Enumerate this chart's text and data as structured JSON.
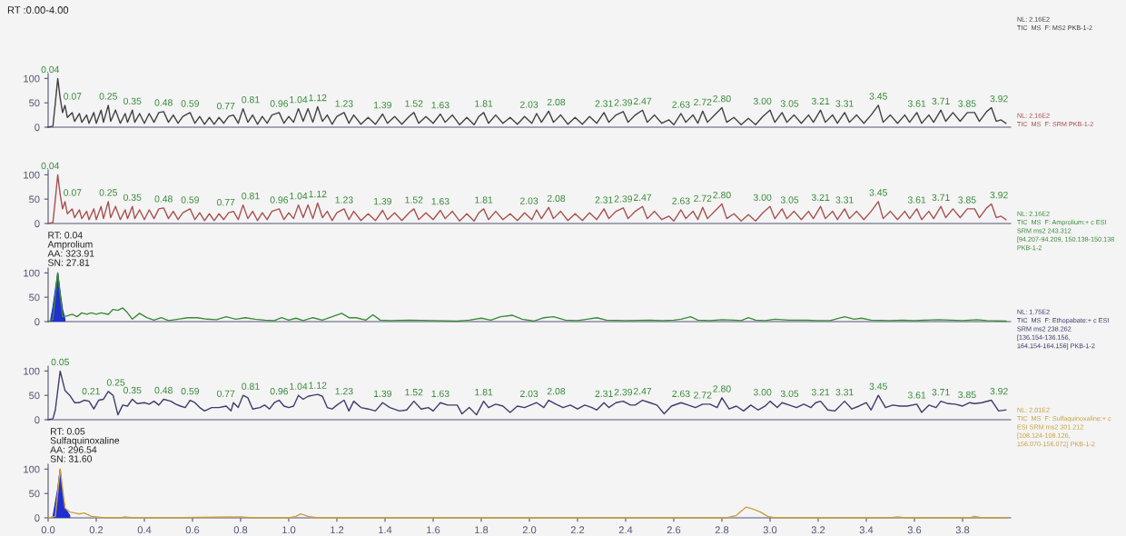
{
  "chart_data": [
    {
      "type": "line",
      "title": "RT :0.00-4.00",
      "xlim": [
        0,
        4.0
      ],
      "ylim": [
        0,
        110
      ],
      "yticks": [
        0,
        50,
        100
      ],
      "tick_labels": "y",
      "series": [
        {
          "color": "#404040",
          "x": [
            0,
            0.02,
            0.03,
            0.04,
            0.05,
            0.06,
            0.07,
            0.08,
            0.1,
            0.11,
            0.13,
            0.14,
            0.16,
            0.17,
            0.19,
            0.2,
            0.22,
            0.23,
            0.25,
            0.26,
            0.28,
            0.3,
            0.32,
            0.33,
            0.35,
            0.36,
            0.38,
            0.4,
            0.42,
            0.44,
            0.46,
            0.48,
            0.5,
            0.52,
            0.54,
            0.56,
            0.59,
            0.61,
            0.63,
            0.65,
            0.67,
            0.69,
            0.71,
            0.73,
            0.75,
            0.77,
            0.79,
            0.81,
            0.83,
            0.85,
            0.87,
            0.89,
            0.91,
            0.93,
            0.96,
            0.98,
            1.0,
            1.02,
            1.04,
            1.06,
            1.08,
            1.1,
            1.12,
            1.14,
            1.16,
            1.18,
            1.2,
            1.23,
            1.25,
            1.27,
            1.3,
            1.33,
            1.36,
            1.39,
            1.41,
            1.44,
            1.47,
            1.5,
            1.52,
            1.54,
            1.57,
            1.6,
            1.63,
            1.65,
            1.68,
            1.71,
            1.74,
            1.77,
            1.79,
            1.81,
            1.83,
            1.86,
            1.89,
            1.92,
            1.95,
            1.98,
            2.01,
            2.03,
            2.05,
            2.08,
            2.1,
            2.13,
            2.16,
            2.19,
            2.22,
            2.25,
            2.28,
            2.31,
            2.33,
            2.36,
            2.39,
            2.41,
            2.44,
            2.47,
            2.49,
            2.52,
            2.55,
            2.58,
            2.6,
            2.63,
            2.65,
            2.68,
            2.7,
            2.72,
            2.74,
            2.77,
            2.8,
            2.82,
            2.85,
            2.88,
            2.91,
            2.94,
            2.97,
            3.0,
            3.02,
            3.05,
            3.07,
            3.1,
            3.13,
            3.16,
            3.18,
            3.21,
            3.23,
            3.26,
            3.28,
            3.31,
            3.33,
            3.36,
            3.39,
            3.42,
            3.45,
            3.47,
            3.5,
            3.53,
            3.56,
            3.58,
            3.61,
            3.63,
            3.66,
            3.68,
            3.71,
            3.73,
            3.76,
            3.79,
            3.82,
            3.85,
            3.87,
            3.9,
            3.92,
            3.94,
            3.96,
            3.98
          ],
          "values": [
            0,
            2,
            50,
            100,
            60,
            30,
            45,
            20,
            30,
            12,
            28,
            10,
            25,
            8,
            30,
            8,
            35,
            10,
            45,
            12,
            35,
            8,
            28,
            10,
            35,
            10,
            28,
            8,
            28,
            10,
            30,
            32,
            10,
            25,
            8,
            22,
            30,
            8,
            22,
            6,
            20,
            6,
            20,
            8,
            22,
            25,
            8,
            38,
            10,
            25,
            6,
            22,
            8,
            25,
            30,
            8,
            22,
            10,
            38,
            12,
            38,
            10,
            42,
            12,
            25,
            6,
            22,
            30,
            8,
            25,
            6,
            20,
            6,
            27,
            8,
            22,
            6,
            22,
            30,
            8,
            22,
            8,
            27,
            10,
            25,
            5,
            20,
            5,
            22,
            30,
            8,
            25,
            8,
            20,
            6,
            22,
            8,
            28,
            10,
            33,
            10,
            25,
            6,
            20,
            6,
            22,
            8,
            30,
            10,
            25,
            32,
            10,
            25,
            35,
            10,
            25,
            8,
            15,
            5,
            28,
            10,
            25,
            8,
            33,
            10,
            25,
            40,
            10,
            20,
            5,
            18,
            5,
            22,
            35,
            10,
            30,
            10,
            25,
            8,
            25,
            10,
            35,
            10,
            25,
            8,
            30,
            10,
            25,
            8,
            25,
            45,
            10,
            25,
            8,
            25,
            10,
            30,
            8,
            25,
            10,
            35,
            12,
            30,
            12,
            30,
            30,
            12,
            32,
            40,
            12,
            15,
            8
          ]
        }
      ],
      "annotations": [
        {
          "text": "0.04",
          "x": 0.04,
          "y": 100
        },
        {
          "text": "0.07",
          "x": 0.07,
          "y": 45
        },
        {
          "text": "0.25",
          "x": 0.25,
          "y": 45
        },
        {
          "text": "0.35",
          "x": 0.35,
          "y": 35
        },
        {
          "text": "0.48",
          "x": 0.48,
          "y": 32
        },
        {
          "text": "0.59",
          "x": 0.59,
          "y": 30
        },
        {
          "text": "0.77",
          "x": 0.77,
          "y": 25
        },
        {
          "text": "0.81",
          "x": 0.81,
          "y": 38
        },
        {
          "text": "0.96",
          "x": 0.96,
          "y": 30
        },
        {
          "text": "1.04",
          "x": 1.04,
          "y": 38
        },
        {
          "text": "1.12",
          "x": 1.12,
          "y": 42
        },
        {
          "text": "1.23",
          "x": 1.23,
          "y": 30
        },
        {
          "text": "1.39",
          "x": 1.39,
          "y": 27
        },
        {
          "text": "1.52",
          "x": 1.52,
          "y": 30
        },
        {
          "text": "1.63",
          "x": 1.63,
          "y": 27
        },
        {
          "text": "1.81",
          "x": 1.81,
          "y": 30
        },
        {
          "text": "2.03",
          "x": 2.03,
          "y": 28
        },
        {
          "text": "2.08",
          "x": 2.08,
          "y": 33
        },
        {
          "text": "2.31",
          "x": 2.31,
          "y": 30
        },
        {
          "text": "2.39",
          "x": 2.39,
          "y": 32
        },
        {
          "text": "2.47",
          "x": 2.47,
          "y": 35
        },
        {
          "text": "2.63",
          "x": 2.63,
          "y": 28
        },
        {
          "text": "2.72",
          "x": 2.72,
          "y": 33
        },
        {
          "text": "2.80",
          "x": 2.8,
          "y": 40
        },
        {
          "text": "3.00",
          "x": 3.0,
          "y": 35
        },
        {
          "text": "3.05",
          "x": 3.05,
          "y": 30
        },
        {
          "text": "3.21",
          "x": 3.21,
          "y": 35
        },
        {
          "text": "3.31",
          "x": 3.31,
          "y": 30
        },
        {
          "text": "3.45",
          "x": 3.45,
          "y": 45
        },
        {
          "text": "3.61",
          "x": 3.61,
          "y": 30
        },
        {
          "text": "3.71",
          "x": 3.71,
          "y": 35
        },
        {
          "text": "3.85",
          "x": 3.85,
          "y": 30
        },
        {
          "text": "3.92",
          "x": 3.92,
          "y": 40
        },
        "NL: 2.16E2\nTIC  MS  F: MS2 PKB-1-2"
      ]
    },
    {
      "type": "line",
      "xlim": [
        0,
        4.0
      ],
      "ylim": [
        0,
        110
      ],
      "yticks": [
        0,
        50,
        100
      ],
      "tick_labels": "y",
      "series": [
        {
          "color": "#a85050",
          "x": [
            0,
            0.02,
            0.03,
            0.04,
            0.05,
            0.06,
            0.07,
            0.08,
            0.1,
            0.11,
            0.13,
            0.14,
            0.16,
            0.17,
            0.19,
            0.2,
            0.22,
            0.23,
            0.25,
            0.26,
            0.28,
            0.3,
            0.32,
            0.33,
            0.35,
            0.36,
            0.38,
            0.4,
            0.42,
            0.44,
            0.46,
            0.48,
            0.5,
            0.52,
            0.54,
            0.56,
            0.59,
            0.61,
            0.63,
            0.65,
            0.67,
            0.69,
            0.71,
            0.73,
            0.75,
            0.77,
            0.79,
            0.81,
            0.83,
            0.85,
            0.87,
            0.89,
            0.91,
            0.93,
            0.96,
            0.98,
            1.0,
            1.02,
            1.04,
            1.06,
            1.08,
            1.1,
            1.12,
            1.14,
            1.16,
            1.18,
            1.2,
            1.23,
            1.25,
            1.27,
            1.3,
            1.33,
            1.36,
            1.39,
            1.41,
            1.44,
            1.47,
            1.5,
            1.52,
            1.54,
            1.57,
            1.6,
            1.63,
            1.65,
            1.68,
            1.71,
            1.74,
            1.77,
            1.79,
            1.81,
            1.83,
            1.86,
            1.89,
            1.92,
            1.95,
            1.98,
            2.01,
            2.03,
            2.05,
            2.08,
            2.1,
            2.13,
            2.16,
            2.19,
            2.22,
            2.25,
            2.28,
            2.31,
            2.33,
            2.36,
            2.39,
            2.41,
            2.44,
            2.47,
            2.49,
            2.52,
            2.55,
            2.58,
            2.6,
            2.63,
            2.65,
            2.68,
            2.7,
            2.72,
            2.74,
            2.77,
            2.8,
            2.82,
            2.85,
            2.88,
            2.91,
            2.94,
            2.97,
            3.0,
            3.02,
            3.05,
            3.07,
            3.1,
            3.13,
            3.16,
            3.18,
            3.21,
            3.23,
            3.26,
            3.28,
            3.31,
            3.33,
            3.36,
            3.39,
            3.42,
            3.45,
            3.47,
            3.5,
            3.53,
            3.56,
            3.58,
            3.61,
            3.63,
            3.66,
            3.68,
            3.71,
            3.73,
            3.76,
            3.79,
            3.82,
            3.85,
            3.87,
            3.9,
            3.92,
            3.94,
            3.96,
            3.98
          ],
          "values": [
            0,
            2,
            50,
            100,
            60,
            30,
            45,
            20,
            30,
            12,
            28,
            10,
            25,
            8,
            30,
            8,
            35,
            10,
            45,
            12,
            35,
            8,
            28,
            10,
            35,
            10,
            28,
            8,
            28,
            10,
            30,
            32,
            10,
            25,
            8,
            22,
            30,
            8,
            22,
            6,
            20,
            6,
            20,
            8,
            22,
            25,
            8,
            38,
            10,
            25,
            6,
            22,
            8,
            25,
            30,
            8,
            22,
            10,
            38,
            12,
            38,
            10,
            42,
            12,
            25,
            6,
            22,
            30,
            8,
            25,
            6,
            20,
            6,
            27,
            8,
            22,
            6,
            22,
            30,
            8,
            22,
            8,
            27,
            10,
            25,
            5,
            20,
            5,
            22,
            30,
            8,
            25,
            8,
            20,
            6,
            22,
            8,
            28,
            10,
            33,
            10,
            25,
            6,
            20,
            6,
            22,
            8,
            30,
            10,
            25,
            32,
            10,
            25,
            35,
            10,
            25,
            8,
            15,
            5,
            28,
            10,
            25,
            8,
            33,
            10,
            25,
            40,
            10,
            20,
            5,
            18,
            5,
            22,
            35,
            10,
            30,
            10,
            25,
            8,
            25,
            10,
            35,
            10,
            25,
            8,
            30,
            10,
            25,
            8,
            25,
            45,
            10,
            25,
            8,
            25,
            10,
            30,
            8,
            25,
            10,
            35,
            12,
            30,
            12,
            30,
            30,
            12,
            32,
            40,
            12,
            15,
            8
          ]
        }
      ],
      "annotations": [
        {
          "text": "0.04",
          "x": 0.04,
          "y": 100
        },
        {
          "text": "0.07",
          "x": 0.07,
          "y": 45
        },
        {
          "text": "0.25",
          "x": 0.25,
          "y": 45
        },
        {
          "text": "0.35",
          "x": 0.35,
          "y": 35
        },
        {
          "text": "0.48",
          "x": 0.48,
          "y": 32
        },
        {
          "text": "0.59",
          "x": 0.59,
          "y": 30
        },
        {
          "text": "0.77",
          "x": 0.77,
          "y": 25
        },
        {
          "text": "0.81",
          "x": 0.81,
          "y": 38
        },
        {
          "text": "0.96",
          "x": 0.96,
          "y": 30
        },
        {
          "text": "1.04",
          "x": 1.04,
          "y": 38
        },
        {
          "text": "1.12",
          "x": 1.12,
          "y": 42
        },
        {
          "text": "1.23",
          "x": 1.23,
          "y": 30
        },
        {
          "text": "1.39",
          "x": 1.39,
          "y": 27
        },
        {
          "text": "1.52",
          "x": 1.52,
          "y": 30
        },
        {
          "text": "1.63",
          "x": 1.63,
          "y": 27
        },
        {
          "text": "1.81",
          "x": 1.81,
          "y": 30
        },
        {
          "text": "2.03",
          "x": 2.03,
          "y": 28
        },
        {
          "text": "2.08",
          "x": 2.08,
          "y": 33
        },
        {
          "text": "2.31",
          "x": 2.31,
          "y": 30
        },
        {
          "text": "2.39",
          "x": 2.39,
          "y": 32
        },
        {
          "text": "2.47",
          "x": 2.47,
          "y": 35
        },
        {
          "text": "2.63",
          "x": 2.63,
          "y": 28
        },
        {
          "text": "2.72",
          "x": 2.72,
          "y": 33
        },
        {
          "text": "2.80",
          "x": 2.8,
          "y": 40
        },
        {
          "text": "3.00",
          "x": 3.0,
          "y": 35
        },
        {
          "text": "3.05",
          "x": 3.05,
          "y": 30
        },
        {
          "text": "3.21",
          "x": 3.21,
          "y": 35
        },
        {
          "text": "3.31",
          "x": 3.31,
          "y": 30
        },
        {
          "text": "3.45",
          "x": 3.45,
          "y": 45
        },
        {
          "text": "3.61",
          "x": 3.61,
          "y": 30
        },
        {
          "text": "3.71",
          "x": 3.71,
          "y": 35
        },
        {
          "text": "3.85",
          "x": 3.85,
          "y": 30
        },
        {
          "text": "3.92",
          "x": 3.92,
          "y": 40
        },
        "NL: 2.16E2\nTIC  MS  F: SRM PKB-1-2"
      ]
    },
    {
      "type": "line",
      "xlim": [
        0,
        4.0
      ],
      "ylim": [
        0,
        110
      ],
      "yticks": [
        0,
        50,
        100
      ],
      "tick_labels": "y",
      "series": [
        {
          "color": "#3a8a3a",
          "x": [
            0,
            0.02,
            0.04,
            0.06,
            0.08,
            0.1,
            0.12,
            0.14,
            0.16,
            0.18,
            0.2,
            0.22,
            0.25,
            0.27,
            0.29,
            0.31,
            0.33,
            0.35,
            0.38,
            0.41,
            0.44,
            0.47,
            0.5,
            0.54,
            0.58,
            0.62,
            0.66,
            0.7,
            0.74,
            0.78,
            0.82,
            0.86,
            0.9,
            0.94,
            0.97,
            1.0,
            1.03,
            1.06,
            1.1,
            1.14,
            1.18,
            1.22,
            1.25,
            1.28,
            1.32,
            1.35,
            1.38,
            1.42,
            1.5,
            1.6,
            1.7,
            1.75,
            1.8,
            1.84,
            1.88,
            1.93,
            1.97,
            2.02,
            2.06,
            2.1,
            2.15,
            2.2,
            2.24,
            2.28,
            2.32,
            2.4,
            2.5,
            2.55,
            2.6,
            2.63,
            2.67,
            2.7,
            2.75,
            2.8,
            2.85,
            2.88,
            2.91,
            2.94,
            2.98,
            3.02,
            3.08,
            3.15,
            3.2,
            3.25,
            3.31,
            3.35,
            3.38,
            3.42,
            3.5,
            3.55,
            3.6,
            3.65,
            3.7,
            3.75,
            3.8,
            3.86,
            3.9,
            3.98
          ],
          "values": [
            0,
            5,
            100,
            10,
            12,
            15,
            10,
            18,
            15,
            18,
            15,
            18,
            15,
            25,
            23,
            28,
            18,
            5,
            17,
            8,
            3,
            8,
            2,
            5,
            8,
            8,
            5,
            4,
            10,
            5,
            8,
            5,
            3,
            2,
            8,
            3,
            7,
            2,
            8,
            3,
            10,
            17,
            8,
            8,
            3,
            14,
            3,
            2,
            3,
            2,
            1,
            3,
            7,
            3,
            10,
            13,
            5,
            1,
            8,
            10,
            3,
            2,
            5,
            8,
            3,
            2,
            3,
            2,
            3,
            5,
            10,
            3,
            2,
            4,
            3,
            2,
            8,
            3,
            2,
            5,
            3,
            3,
            2,
            2,
            10,
            5,
            7,
            3,
            2,
            3,
            2,
            3,
            4,
            3,
            2,
            4,
            2,
            1
          ]
        },
        {
          "type": "area",
          "color": "#1f2fd0",
          "x": [
            0.01,
            0.02,
            0.04,
            0.05,
            0.06,
            0.07
          ],
          "values": [
            2,
            30,
            100,
            60,
            25,
            5
          ]
        }
      ],
      "annotations": [
        {
          "text": "RT: 0.04\nAmprolium\nAA: 323.91\nSN: 27.81",
          "x": 0.04,
          "y": 100
        },
        "NL: 2.16E2\nTIC  MS  F: Amprolium:+ c ESI\nSRM ms2 243.312\n[94.207-94.209, 150.138-150.138\nPKB-1-2"
      ]
    },
    {
      "type": "line",
      "xlim": [
        0,
        4.0
      ],
      "ylim": [
        0,
        110
      ],
      "yticks": [
        0,
        50,
        100
      ],
      "tick_labels": "y",
      "series": [
        {
          "color": "#3c3c6e",
          "x": [
            0,
            0.02,
            0.03,
            0.05,
            0.07,
            0.09,
            0.11,
            0.13,
            0.15,
            0.17,
            0.19,
            0.21,
            0.23,
            0.25,
            0.27,
            0.29,
            0.31,
            0.33,
            0.35,
            0.37,
            0.4,
            0.42,
            0.44,
            0.46,
            0.48,
            0.51,
            0.53,
            0.55,
            0.57,
            0.59,
            0.61,
            0.63,
            0.65,
            0.68,
            0.71,
            0.74,
            0.76,
            0.77,
            0.79,
            0.81,
            0.83,
            0.85,
            0.88,
            0.9,
            0.92,
            0.94,
            0.96,
            0.98,
            1.0,
            1.02,
            1.04,
            1.06,
            1.08,
            1.1,
            1.12,
            1.14,
            1.16,
            1.18,
            1.2,
            1.23,
            1.25,
            1.27,
            1.3,
            1.33,
            1.36,
            1.39,
            1.42,
            1.46,
            1.49,
            1.52,
            1.55,
            1.58,
            1.6,
            1.63,
            1.66,
            1.7,
            1.72,
            1.75,
            1.78,
            1.81,
            1.83,
            1.86,
            1.89,
            1.92,
            1.95,
            1.98,
            2.03,
            2.06,
            2.08,
            2.11,
            2.14,
            2.17,
            2.2,
            2.23,
            2.26,
            2.28,
            2.31,
            2.33,
            2.36,
            2.39,
            2.42,
            2.44,
            2.47,
            2.5,
            2.53,
            2.56,
            2.59,
            2.63,
            2.66,
            2.69,
            2.72,
            2.75,
            2.78,
            2.8,
            2.83,
            2.86,
            2.89,
            2.92,
            2.95,
            2.98,
            3.0,
            3.03,
            3.05,
            3.08,
            3.11,
            3.14,
            3.17,
            3.19,
            3.21,
            3.24,
            3.27,
            3.31,
            3.34,
            3.37,
            3.4,
            3.42,
            3.45,
            3.48,
            3.51,
            3.54,
            3.57,
            3.61,
            3.63,
            3.66,
            3.69,
            3.71,
            3.74,
            3.77,
            3.8,
            3.83,
            3.85,
            3.88,
            3.92,
            3.95,
            3.98
          ],
          "values": [
            0,
            2,
            20,
            100,
            60,
            50,
            35,
            35,
            40,
            38,
            22,
            40,
            42,
            58,
            50,
            10,
            30,
            28,
            42,
            33,
            35,
            32,
            38,
            30,
            42,
            38,
            32,
            28,
            25,
            40,
            35,
            25,
            18,
            25,
            25,
            28,
            18,
            35,
            25,
            50,
            45,
            22,
            25,
            30,
            22,
            35,
            40,
            28,
            25,
            28,
            50,
            42,
            48,
            50,
            52,
            48,
            25,
            22,
            30,
            40,
            18,
            38,
            25,
            22,
            18,
            35,
            25,
            18,
            20,
            38,
            22,
            25,
            18,
            35,
            30,
            30,
            12,
            25,
            10,
            38,
            25,
            32,
            28,
            15,
            28,
            25,
            35,
            25,
            40,
            32,
            25,
            30,
            22,
            30,
            25,
            20,
            35,
            25,
            35,
            38,
            30,
            30,
            40,
            35,
            30,
            12,
            28,
            35,
            30,
            25,
            32,
            32,
            25,
            45,
            22,
            28,
            18,
            30,
            20,
            28,
            38,
            25,
            35,
            30,
            25,
            32,
            25,
            35,
            38,
            20,
            18,
            38,
            22,
            28,
            35,
            20,
            50,
            25,
            30,
            28,
            28,
            32,
            15,
            30,
            25,
            38,
            33,
            32,
            28,
            35,
            33,
            35,
            40,
            18,
            20
          ]
        }
      ],
      "annotations": [
        {
          "text": "0.05",
          "x": 0.05,
          "y": 100
        },
        {
          "text": "0.21",
          "x": 0.21,
          "y": 40
        },
        {
          "text": "0.25",
          "x": 0.25,
          "y": 58
        },
        {
          "text": "0.35",
          "x": 0.35,
          "y": 42
        },
        {
          "text": "0.48",
          "x": 0.48,
          "y": 42
        },
        {
          "text": "0.59",
          "x": 0.59,
          "y": 40
        },
        {
          "text": "0.77",
          "x": 0.77,
          "y": 35
        },
        {
          "text": "0.81",
          "x": 0.81,
          "y": 50
        },
        {
          "text": "0.96",
          "x": 0.96,
          "y": 40
        },
        {
          "text": "1.04",
          "x": 1.04,
          "y": 50
        },
        {
          "text": "1.12",
          "x": 1.12,
          "y": 52
        },
        {
          "text": "1.23",
          "x": 1.23,
          "y": 40
        },
        {
          "text": "1.39",
          "x": 1.39,
          "y": 35
        },
        {
          "text": "1.52",
          "x": 1.52,
          "y": 38
        },
        {
          "text": "1.63",
          "x": 1.63,
          "y": 35
        },
        {
          "text": "1.81",
          "x": 1.81,
          "y": 38
        },
        {
          "text": "2.03",
          "x": 2.03,
          "y": 35
        },
        {
          "text": "2.08",
          "x": 2.08,
          "y": 40
        },
        {
          "text": "2.31",
          "x": 2.31,
          "y": 35
        },
        {
          "text": "2.39",
          "x": 2.39,
          "y": 38
        },
        {
          "text": "2.47",
          "x": 2.47,
          "y": 40
        },
        {
          "text": "2.63",
          "x": 2.63,
          "y": 35
        },
        {
          "text": "2.72",
          "x": 2.72,
          "y": 32
        },
        {
          "text": "2.80",
          "x": 2.8,
          "y": 45
        },
        {
          "text": "3.00",
          "x": 3.0,
          "y": 38
        },
        {
          "text": "3.05",
          "x": 3.05,
          "y": 35
        },
        {
          "text": "3.21",
          "x": 3.21,
          "y": 38
        },
        {
          "text": "3.31",
          "x": 3.31,
          "y": 38
        },
        {
          "text": "3.45",
          "x": 3.45,
          "y": 50
        },
        {
          "text": "3.61",
          "x": 3.61,
          "y": 32
        },
        {
          "text": "3.71",
          "x": 3.71,
          "y": 38
        },
        {
          "text": "3.85",
          "x": 3.85,
          "y": 33
        },
        {
          "text": "3.92",
          "x": 3.92,
          "y": 40
        },
        "NL: 1.75E2\nTIC  MS  F: Ethopabate:+ c ESI\nSRM ms2 238.262\n[136.154-136.156,\n164.154-164.156] PKB-1-2"
      ]
    },
    {
      "type": "line",
      "xlim": [
        0,
        4.0
      ],
      "ylim": [
        0,
        110
      ],
      "yticks": [
        0,
        50,
        100
      ],
      "xticks": [
        {
          "value": 0,
          "label": "0.0"
        },
        {
          "value": 0.2,
          "label": "0.2"
        },
        {
          "value": 0.4,
          "label": "0.4"
        },
        {
          "value": 0.6,
          "label": "0.6"
        },
        {
          "value": 0.8,
          "label": "0.8"
        },
        {
          "value": 1.0,
          "label": "1.0"
        },
        {
          "value": 1.2,
          "label": "1.2"
        },
        {
          "value": 1.4,
          "label": "1.4"
        },
        {
          "value": 1.6,
          "label": "1.6"
        },
        {
          "value": 1.8,
          "label": "1.8"
        },
        {
          "value": 2.0,
          "label": "2.0"
        },
        {
          "value": 2.2,
          "label": "2.2"
        },
        {
          "value": 2.4,
          "label": "2.4"
        },
        {
          "value": 2.6,
          "label": "2.6"
        },
        {
          "value": 2.8,
          "label": "2.8"
        },
        {
          "value": 3.0,
          "label": "3.0"
        },
        {
          "value": 3.2,
          "label": "3.2"
        },
        {
          "value": 3.4,
          "label": "3.4"
        },
        {
          "value": 3.6,
          "label": "3.6"
        },
        {
          "value": 3.8,
          "label": "3.8"
        }
      ],
      "series": [
        {
          "color": "#c8a040",
          "x": [
            0,
            0.03,
            0.05,
            0.07,
            0.09,
            0.11,
            0.13,
            0.15,
            0.18,
            0.22,
            0.3,
            0.32,
            0.35,
            0.5,
            0.8,
            0.85,
            1.0,
            1.03,
            1.05,
            1.08,
            1.12,
            1.5,
            2.0,
            2.5,
            2.82,
            2.86,
            2.9,
            2.93,
            2.96,
            2.99,
            3.02,
            3.5,
            3.53,
            3.56,
            3.83,
            3.85,
            3.88,
            3.98
          ],
          "values": [
            0,
            3,
            100,
            20,
            12,
            10,
            8,
            10,
            3,
            1,
            0,
            2,
            0,
            0,
            2,
            0,
            0,
            3,
            8,
            3,
            0,
            0,
            0,
            0,
            0,
            5,
            22,
            18,
            12,
            3,
            0,
            0,
            2,
            0,
            0,
            3,
            0,
            0
          ]
        },
        {
          "type": "area",
          "color": "#1f2fd0",
          "x": [
            0.02,
            0.04,
            0.05,
            0.06,
            0.07,
            0.09
          ],
          "values": [
            2,
            60,
            100,
            50,
            20,
            5
          ]
        }
      ],
      "annotations": [
        {
          "text": "RT: 0.05\nSulfaquinoxaline\nAA: 296.54\nSN: 31.60",
          "x": 0.05,
          "y": 100
        },
        "NL: 2.01E2\nTIC  MS  F: Sulfaquinoxaline:+ c\nESI SRM ms2 301.212\n[108.124-108.126,\n156.070-156.072] PKB-1-2"
      ]
    }
  ]
}
